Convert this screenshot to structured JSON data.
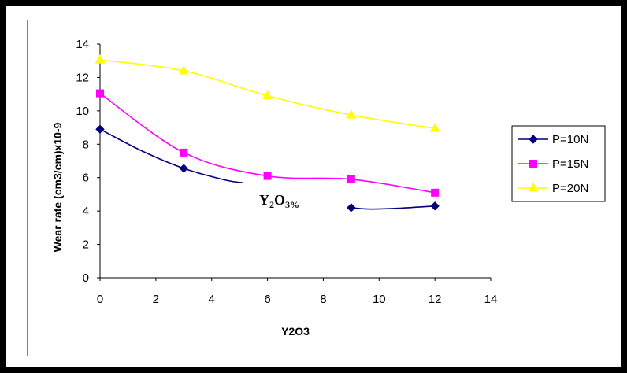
{
  "chart_data": {
    "type": "line",
    "xlabel": "Y2O3",
    "ylabel": "Wear rate (cm3/cm)x10-9",
    "xlim": [
      0,
      14
    ],
    "ylim": [
      0,
      14
    ],
    "x_ticks": [
      "0",
      "2",
      "4",
      "6",
      "8",
      "10",
      "12",
      "14"
    ],
    "y_ticks": [
      "0",
      "2",
      "4",
      "6",
      "8",
      "10",
      "12",
      "14"
    ],
    "grid": false,
    "legend_position": "right",
    "annotation": {
      "base": "Y",
      "sub1": "2",
      "mid": "O",
      "sub2": "3%"
    },
    "series": [
      {
        "name": "P=10N",
        "color": "#000080",
        "marker": "diamond",
        "points": [
          [
            0,
            8.9
          ],
          [
            3,
            6.55
          ],
          [
            9,
            4.2
          ],
          [
            12,
            4.3
          ]
        ],
        "segments": [
          [
            [
              0,
              8.9
            ],
            [
              1.5,
              7.6
            ],
            [
              3,
              6.55
            ],
            [
              4.5,
              5.85
            ],
            [
              5.1,
              5.7
            ]
          ],
          [
            [
              9,
              4.2
            ],
            [
              9.6,
              4.12
            ],
            [
              10.5,
              4.15
            ],
            [
              12,
              4.3
            ]
          ]
        ]
      },
      {
        "name": "P=15N",
        "color": "#FF00FF",
        "marker": "square",
        "points": [
          [
            0,
            11.05
          ],
          [
            3,
            7.5
          ],
          [
            6,
            6.1
          ],
          [
            9,
            5.9
          ],
          [
            12,
            5.1
          ]
        ]
      },
      {
        "name": "P=20N",
        "color": "#FFFF00",
        "marker": "triangle",
        "points": [
          [
            0,
            13.05
          ],
          [
            3,
            12.4
          ],
          [
            6,
            10.9
          ],
          [
            9,
            9.75
          ],
          [
            12,
            8.95
          ]
        ]
      }
    ]
  }
}
